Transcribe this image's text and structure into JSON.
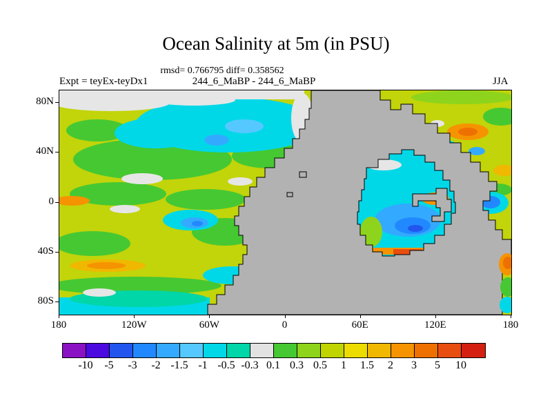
{
  "title": "Ocean Salinity at 5m (in PSU)",
  "stats": "rmsd= 0.766795 diff= 0.358562",
  "header": {
    "experiment": "Expt = teyEx-teyDx1",
    "comparison": "244_6_MaBP - 244_6_MaBP",
    "season": "JJA"
  },
  "chart_data": {
    "type": "heatmap",
    "title": "Ocean Salinity at 5m (in PSU)",
    "variable": "Ocean Salinity",
    "depth": "5m",
    "units": "PSU",
    "rmsd": 0.766795,
    "diff": 0.358562,
    "experiment": "teyEx-teyDx1",
    "comparison": "244_6_MaBP - 244_6_MaBP",
    "season": "JJA",
    "x_axis": {
      "ticks": [
        "180",
        "120W",
        "60W",
        "0",
        "60E",
        "120E",
        "180"
      ]
    },
    "y_axis": {
      "ticks": [
        "80N",
        "40N",
        "0",
        "40S",
        "80S"
      ],
      "latitudes": [
        80,
        40,
        0,
        -40,
        -80
      ]
    },
    "colorbar": {
      "boundaries": [
        "-10",
        "-5",
        "-3",
        "-2",
        "-1.5",
        "-1",
        "-0.5",
        "-0.3",
        "0.1",
        "0.3",
        "0.5",
        "1",
        "1.5",
        "2",
        "3",
        "5",
        "10"
      ],
      "colors": [
        "#8a12c4",
        "#4a0ae0",
        "#2255ee",
        "#2288ff",
        "#33aaff",
        "#55c8ff",
        "#00d8e8",
        "#00d6a8",
        "#e2e2e2",
        "#46c832",
        "#8ed41c",
        "#c0d400",
        "#ecdc00",
        "#f0b800",
        "#f59300",
        "#ee7000",
        "#e84e10",
        "#d42010"
      ]
    },
    "land_color": "#b2b2b2",
    "background_anomaly_color": "#c2d40a"
  }
}
